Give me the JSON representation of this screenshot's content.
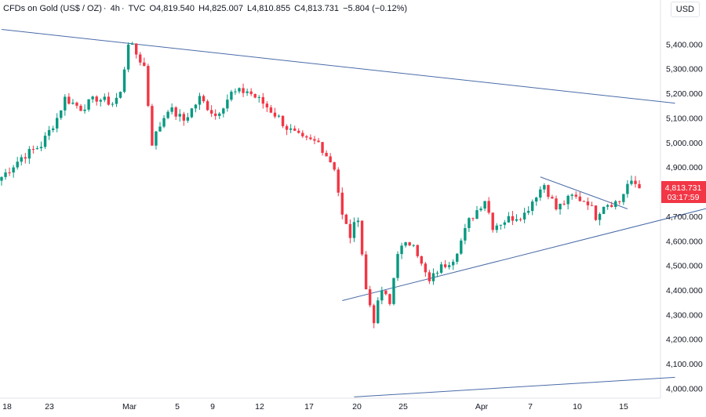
{
  "header": {
    "symbol": "CFDs on Gold (US$ / OZ)",
    "interval": "4h",
    "source": "TVC",
    "open": "O4,819.540",
    "high": "H4,825.007",
    "low": "L4,810.855",
    "close": "C4,813.731",
    "change": "−5.804 (−0.12%)"
  },
  "currency": "USD",
  "price_label": {
    "price": "4,813.731",
    "countdown": "03:17:59"
  },
  "colors": {
    "up": "#089981",
    "down": "#f23645",
    "trend": "#4a6ba8",
    "label": "#f23645"
  },
  "chart_data": {
    "type": "candlestick",
    "ylim": [
      3960,
      5500
    ],
    "y_ticks": [
      "5,400.000",
      "5,300.000",
      "5,200.000",
      "5,100.000",
      "5,000.000",
      "4,900.000",
      "4,800.000",
      "4,700.000",
      "4,600.000",
      "4,500.000",
      "4,400.000",
      "4,300.000",
      "4,200.000",
      "4,100.000",
      "4,000.000"
    ],
    "x_ticks": [
      "18",
      "23",
      "Mar",
      "5",
      "9",
      "12",
      "17",
      "20",
      "25",
      "Apr",
      "7",
      "10",
      "15"
    ],
    "last_price": 4813.731,
    "trendlines": [
      {
        "name": "upper-resistance",
        "from": [
          0,
          5460
        ],
        "to": [
          170,
          5160
        ]
      },
      {
        "name": "lower-support",
        "from": [
          86,
          4357
        ],
        "to": [
          180,
          4740
        ]
      },
      {
        "name": "flag-upper",
        "from": [
          136,
          4860
        ],
        "to": [
          158,
          4730
        ]
      },
      {
        "name": "bottom-line",
        "from": [
          89,
          3965
        ],
        "to": [
          170,
          4045
        ]
      }
    ],
    "path": [
      [
        0,
        4860
      ],
      [
        5,
        4940
      ],
      [
        10,
        4990
      ],
      [
        14,
        5100
      ],
      [
        16,
        5180
      ],
      [
        20,
        5140
      ],
      [
        24,
        5180
      ],
      [
        28,
        5160
      ],
      [
        30,
        5200
      ],
      [
        32,
        5410
      ],
      [
        36,
        5310
      ],
      [
        38,
        5000
      ],
      [
        42,
        5140
      ],
      [
        46,
        5090
      ],
      [
        50,
        5180
      ],
      [
        54,
        5110
      ],
      [
        58,
        5200
      ],
      [
        62,
        5210
      ],
      [
        66,
        5160
      ],
      [
        70,
        5100
      ],
      [
        72,
        5060
      ],
      [
        76,
        5010
      ],
      [
        80,
        5000
      ],
      [
        84,
        4900
      ],
      [
        86,
        4700
      ],
      [
        88,
        4620
      ],
      [
        90,
        4700
      ],
      [
        92,
        4400
      ],
      [
        94,
        4280
      ],
      [
        96,
        4400
      ],
      [
        98,
        4340
      ],
      [
        100,
        4560
      ],
      [
        104,
        4600
      ],
      [
        106,
        4500
      ],
      [
        108,
        4430
      ],
      [
        110,
        4480
      ],
      [
        114,
        4530
      ],
      [
        116,
        4600
      ],
      [
        118,
        4680
      ],
      [
        122,
        4770
      ],
      [
        124,
        4660
      ],
      [
        128,
        4690
      ],
      [
        132,
        4710
      ],
      [
        135,
        4790
      ],
      [
        137,
        4830
      ],
      [
        140,
        4730
      ],
      [
        144,
        4780
      ],
      [
        148,
        4760
      ],
      [
        150,
        4700
      ],
      [
        152,
        4750
      ],
      [
        156,
        4760
      ],
      [
        158,
        4830
      ],
      [
        160,
        4830
      ],
      [
        161,
        4814
      ]
    ]
  }
}
